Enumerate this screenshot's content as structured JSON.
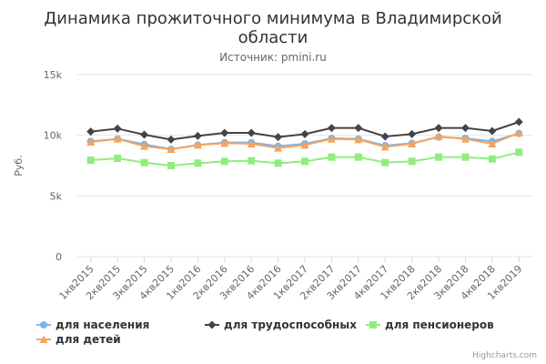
{
  "chart_data": {
    "type": "line",
    "title_lines": [
      "Динамика прожиточного минимума в Владимирской",
      "области"
    ],
    "subtitle": "Источник: pmini.ru",
    "ylabel": "Руб.",
    "ylim": [
      0,
      15000
    ],
    "yticks": [
      {
        "value": 0,
        "label": "0"
      },
      {
        "value": 5000,
        "label": "5k"
      },
      {
        "value": 10000,
        "label": "10k"
      },
      {
        "value": 15000,
        "label": "15k"
      }
    ],
    "grid": true,
    "legend_position": "bottom-left",
    "categories": [
      "1кв2015",
      "2кв2015",
      "3кв2015",
      "4кв2015",
      "1кв2016",
      "2кв2016",
      "3кв2016",
      "4кв2016",
      "1кв2017",
      "2кв2017",
      "3кв2017",
      "4кв2017",
      "1кв2018",
      "2кв2018",
      "3кв2018",
      "4кв2018",
      "1кв2019"
    ],
    "series": [
      {
        "name": "для населения",
        "color": "#7cb5ec",
        "marker": "circle",
        "values": [
          9500,
          9700,
          9250,
          8850,
          9200,
          9400,
          9400,
          9100,
          9300,
          9750,
          9700,
          9150,
          9350,
          9850,
          9750,
          9500,
          10150
        ]
      },
      {
        "name": "для трудоспособных",
        "color": "#434348",
        "marker": "diamond",
        "values": [
          10300,
          10550,
          10050,
          9650,
          9950,
          10200,
          10200,
          9850,
          10100,
          10600,
          10600,
          9900,
          10100,
          10600,
          10600,
          10350,
          11100
        ]
      },
      {
        "name": "для пенсионеров",
        "color": "#90ed7d",
        "marker": "square",
        "values": [
          7950,
          8100,
          7750,
          7500,
          7700,
          7850,
          7900,
          7700,
          7850,
          8200,
          8200,
          7750,
          7850,
          8200,
          8200,
          8050,
          8600
        ]
      },
      {
        "name": "для детей",
        "color": "#f7a35c",
        "marker": "triangle",
        "values": [
          9450,
          9700,
          9100,
          8850,
          9200,
          9350,
          9300,
          8950,
          9200,
          9700,
          9650,
          9050,
          9300,
          9900,
          9700,
          9300,
          10200
        ]
      }
    ]
  },
  "credits": "Highcharts.com"
}
